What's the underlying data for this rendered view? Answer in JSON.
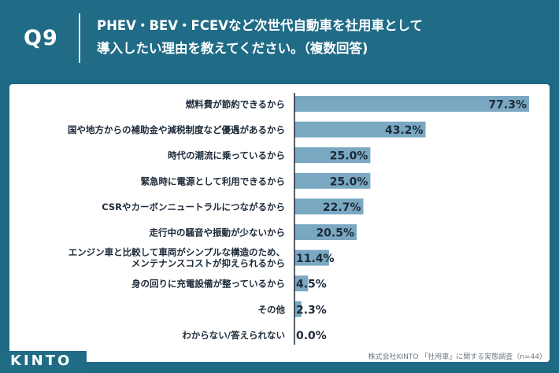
{
  "header": {
    "question_number": "Q9",
    "title_line1": "PHEV・BEV・FCEVなど次世代自動車を社用車として",
    "title_line2": "導入したい理由を教えてください。（複数回答)"
  },
  "footer": {
    "logo": "KINTO",
    "source": "株式会社KINTO 「社用車」に関する実態調査（n=44）"
  },
  "colors": {
    "header_bg": "#206b86",
    "bar": "#7aa8c2",
    "bar_alt": "#7aa8c2",
    "axis": "#1d2a38"
  },
  "chart_data": {
    "type": "bar",
    "orientation": "horizontal",
    "title": "PHEV・BEV・FCEVなど次世代自動車を社用車として導入したい理由を教えてください。（複数回答)",
    "xlabel": "",
    "ylabel": "",
    "xlim": [
      0,
      100
    ],
    "unit": "%",
    "categories": [
      [
        "燃料費が節約できるから"
      ],
      [
        "国や地方からの補助金や減税制度など優遇があるから"
      ],
      [
        "時代の潮流に乗っているから"
      ],
      [
        "緊急時に電源として利用できるから"
      ],
      [
        "CSRやカーボンニュートラルにつながるから"
      ],
      [
        "走行中の騒音や振動が少ないから"
      ],
      [
        "エンジン車と比較して車両がシンプルな構造のため、",
        "メンテナンスコストが抑えられるから"
      ],
      [
        "身の回りに充電設備が整っているから"
      ],
      [
        "その他"
      ],
      [
        "わからない/答えられない"
      ]
    ],
    "values": [
      77.3,
      43.2,
      25.0,
      25.0,
      22.7,
      20.5,
      11.4,
      4.5,
      2.3,
      0.0
    ],
    "value_labels": [
      "77.3%",
      "43.2%",
      "25.0%",
      "25.0%",
      "22.7%",
      "20.5%",
      "11.4%",
      "4.5%",
      "2.3%",
      "0.0%"
    ]
  }
}
